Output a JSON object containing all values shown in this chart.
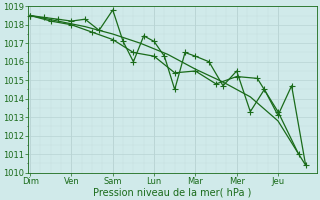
{
  "xlabel": "Pression niveau de la mer( hPa )",
  "bg_color": "#d0eaea",
  "grid_major_color": "#b8d4d4",
  "grid_minor_color": "#c4dcdc",
  "line_color": "#1a6b1a",
  "ylim": [
    1010,
    1019
  ],
  "yticks": [
    1010,
    1011,
    1012,
    1013,
    1014,
    1015,
    1016,
    1017,
    1018,
    1019
  ],
  "day_labels": [
    "Dim",
    "Ven",
    "Sam",
    "Lun",
    "Mar",
    "Mer",
    "Jeu"
  ],
  "day_positions": [
    0,
    1,
    2,
    3,
    4,
    5,
    6
  ],
  "xlim": [
    -0.05,
    6.95
  ],
  "line1_x": [
    0,
    0.33,
    0.67,
    1.0,
    1.33,
    1.67,
    2.0,
    2.25,
    2.5,
    2.75,
    3.0,
    3.25,
    3.5,
    3.75,
    4.0,
    4.33,
    4.67,
    5.0,
    5.33,
    5.67,
    6.0,
    6.33,
    6.67
  ],
  "line1_y": [
    1018.5,
    1018.4,
    1018.3,
    1018.2,
    1018.3,
    1017.7,
    1018.8,
    1017.1,
    1016.0,
    1017.4,
    1017.1,
    1016.3,
    1014.5,
    1016.5,
    1016.3,
    1016.0,
    1014.7,
    1015.5,
    1013.3,
    1014.5,
    1013.1,
    1014.7,
    1010.4
  ],
  "line2_x": [
    0,
    0.5,
    1.0,
    1.5,
    2.0,
    2.5,
    3.0,
    3.5,
    4.0,
    4.5,
    5.0,
    5.5,
    6.0,
    6.5
  ],
  "line2_y": [
    1018.5,
    1018.2,
    1018.0,
    1017.6,
    1017.2,
    1016.5,
    1016.3,
    1015.4,
    1015.5,
    1014.8,
    1015.2,
    1015.1,
    1013.3,
    1011.0
  ],
  "line3_x": [
    0,
    0.67,
    1.33,
    2.0,
    2.67,
    3.33,
    4.0,
    4.67,
    5.33,
    6.0,
    6.67
  ],
  "line3_y": [
    1018.5,
    1018.2,
    1017.9,
    1017.5,
    1017.0,
    1016.4,
    1015.6,
    1014.9,
    1014.1,
    1012.8,
    1010.4
  ],
  "marker_size": 2.2,
  "line_width": 0.9,
  "tick_fontsize": 6.0,
  "xlabel_fontsize": 7.0
}
